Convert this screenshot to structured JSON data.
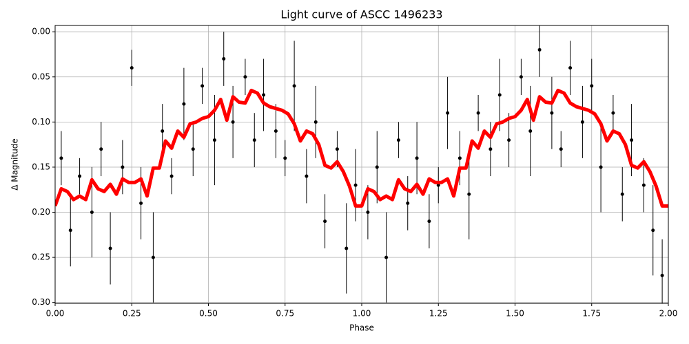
{
  "chart_data": {
    "type": "scatter",
    "title": "Light curve of ASCC 1496233",
    "x_label": "Phase",
    "y_label": "Δ Magnitude",
    "xlim": [
      0,
      2
    ],
    "ylim": [
      0.301,
      -0.007
    ],
    "grid": true,
    "xticks": [
      {
        "value": 0,
        "label": "0.00"
      },
      {
        "value": 0.25,
        "label": "0.25"
      },
      {
        "value": 0.5,
        "label": "0.50"
      },
      {
        "value": 0.75,
        "label": "0.75"
      },
      {
        "value": 1,
        "label": "1.00"
      },
      {
        "value": 1.25,
        "label": "1.25"
      },
      {
        "value": 1.5,
        "label": "1.50"
      },
      {
        "value": 1.75,
        "label": "1.75"
      },
      {
        "value": 2,
        "label": "2.00"
      }
    ],
    "yticks": [
      {
        "value": 0,
        "label": "0.00"
      },
      {
        "value": 0.05,
        "label": "0.05"
      },
      {
        "value": 0.1,
        "label": "0.10"
      },
      {
        "value": 0.15,
        "label": "0.15"
      },
      {
        "value": 0.2,
        "label": "0.20"
      },
      {
        "value": 0.25,
        "label": "0.25"
      },
      {
        "value": 0.3,
        "label": "0.30"
      }
    ],
    "points": {
      "color": "#000000",
      "x": [
        0.02,
        0.05,
        0.08,
        0.12,
        0.15,
        0.18,
        0.22,
        0.25,
        0.28,
        0.32,
        0.35,
        0.38,
        0.42,
        0.45,
        0.48,
        0.52,
        0.55,
        0.58,
        0.62,
        0.65,
        0.68,
        0.72,
        0.75,
        0.78,
        0.82,
        0.85,
        0.88,
        0.92,
        0.95,
        0.98,
        1.02,
        1.05,
        1.08,
        1.12,
        1.15,
        1.18,
        1.22,
        1.25,
        1.28,
        1.32,
        1.35,
        1.38,
        1.42,
        1.45,
        1.48,
        1.52,
        1.55,
        1.58,
        1.62,
        1.65,
        1.68,
        1.72,
        1.75,
        1.78,
        1.82,
        1.85,
        1.88,
        1.92,
        1.95,
        1.98
      ],
      "y": [
        0.14,
        0.22,
        0.16,
        0.2,
        0.13,
        0.24,
        0.15,
        0.04,
        0.19,
        0.25,
        0.11,
        0.16,
        0.08,
        0.13,
        0.06,
        0.12,
        0.03,
        0.1,
        0.05,
        0.12,
        0.07,
        0.11,
        0.14,
        0.06,
        0.16,
        0.1,
        0.21,
        0.13,
        0.24,
        0.17,
        0.2,
        0.15,
        0.25,
        0.12,
        0.19,
        0.14,
        0.21,
        0.17,
        0.09,
        0.14,
        0.18,
        0.09,
        0.13,
        0.07,
        0.12,
        0.05,
        0.11,
        0.02,
        0.09,
        0.13,
        0.04,
        0.1,
        0.06,
        0.15,
        0.09,
        0.18,
        0.12,
        0.17,
        0.22,
        0.27
      ],
      "err": [
        0.03,
        0.04,
        0.02,
        0.05,
        0.03,
        0.04,
        0.03,
        0.02,
        0.04,
        0.05,
        0.03,
        0.02,
        0.04,
        0.03,
        0.02,
        0.05,
        0.03,
        0.04,
        0.02,
        0.03,
        0.04,
        0.03,
        0.02,
        0.05,
        0.03,
        0.04,
        0.03,
        0.02,
        0.05,
        0.04,
        0.03,
        0.04,
        0.05,
        0.02,
        0.03,
        0.04,
        0.03,
        0.02,
        0.04,
        0.03,
        0.05,
        0.02,
        0.03,
        0.04,
        0.03,
        0.02,
        0.05,
        0.03,
        0.04,
        0.02,
        0.03,
        0.04,
        0.03,
        0.05,
        0.02,
        0.03,
        0.04,
        0.03,
        0.05,
        0.04
      ]
    },
    "fit": {
      "color": "#ff0000",
      "x": [
        0,
        0.02,
        0.04,
        0.06,
        0.08,
        0.1,
        0.12,
        0.14,
        0.16,
        0.18,
        0.2,
        0.22,
        0.24,
        0.26,
        0.28,
        0.3,
        0.32,
        0.34,
        0.36,
        0.38,
        0.4,
        0.42,
        0.44,
        0.46,
        0.48,
        0.5,
        0.52,
        0.54,
        0.56,
        0.58,
        0.6,
        0.62,
        0.64,
        0.66,
        0.68,
        0.7,
        0.72,
        0.74,
        0.76,
        0.78,
        0.8,
        0.82,
        0.84,
        0.86,
        0.88,
        0.9,
        0.92,
        0.94,
        0.96,
        0.98,
        1,
        1.02,
        1.04,
        1.06,
        1.08,
        1.1,
        1.12,
        1.14,
        1.16,
        1.18,
        1.2,
        1.22,
        1.24,
        1.26,
        1.28,
        1.3,
        1.32,
        1.34,
        1.36,
        1.38,
        1.4,
        1.42,
        1.44,
        1.46,
        1.48,
        1.5,
        1.52,
        1.54,
        1.56,
        1.58,
        1.6,
        1.62,
        1.64,
        1.66,
        1.68,
        1.7,
        1.72,
        1.74,
        1.76,
        1.78,
        1.8,
        1.82,
        1.84,
        1.86,
        1.88,
        1.9,
        1.92,
        1.94,
        1.96,
        1.98,
        2
      ],
      "y": [
        0.193,
        0.174,
        0.177,
        0.186,
        0.182,
        0.186,
        0.164,
        0.174,
        0.177,
        0.169,
        0.18,
        0.163,
        0.167,
        0.167,
        0.163,
        0.182,
        0.151,
        0.151,
        0.121,
        0.129,
        0.11,
        0.117,
        0.102,
        0.1,
        0.096,
        0.094,
        0.087,
        0.075,
        0.098,
        0.072,
        0.078,
        0.079,
        0.065,
        0.068,
        0.079,
        0.083,
        0.085,
        0.087,
        0.091,
        0.102,
        0.121,
        0.11,
        0.113,
        0.125,
        0.148,
        0.151,
        0.144,
        0.155,
        0.171,
        0.193,
        0.193,
        0.174,
        0.177,
        0.186,
        0.182,
        0.186,
        0.164,
        0.174,
        0.177,
        0.169,
        0.18,
        0.163,
        0.167,
        0.167,
        0.163,
        0.182,
        0.151,
        0.151,
        0.121,
        0.129,
        0.11,
        0.117,
        0.102,
        0.1,
        0.096,
        0.094,
        0.087,
        0.075,
        0.098,
        0.072,
        0.078,
        0.079,
        0.065,
        0.068,
        0.079,
        0.083,
        0.085,
        0.087,
        0.091,
        0.102,
        0.121,
        0.11,
        0.113,
        0.125,
        0.148,
        0.151,
        0.144,
        0.155,
        0.171,
        0.193,
        0.193
      ]
    }
  }
}
